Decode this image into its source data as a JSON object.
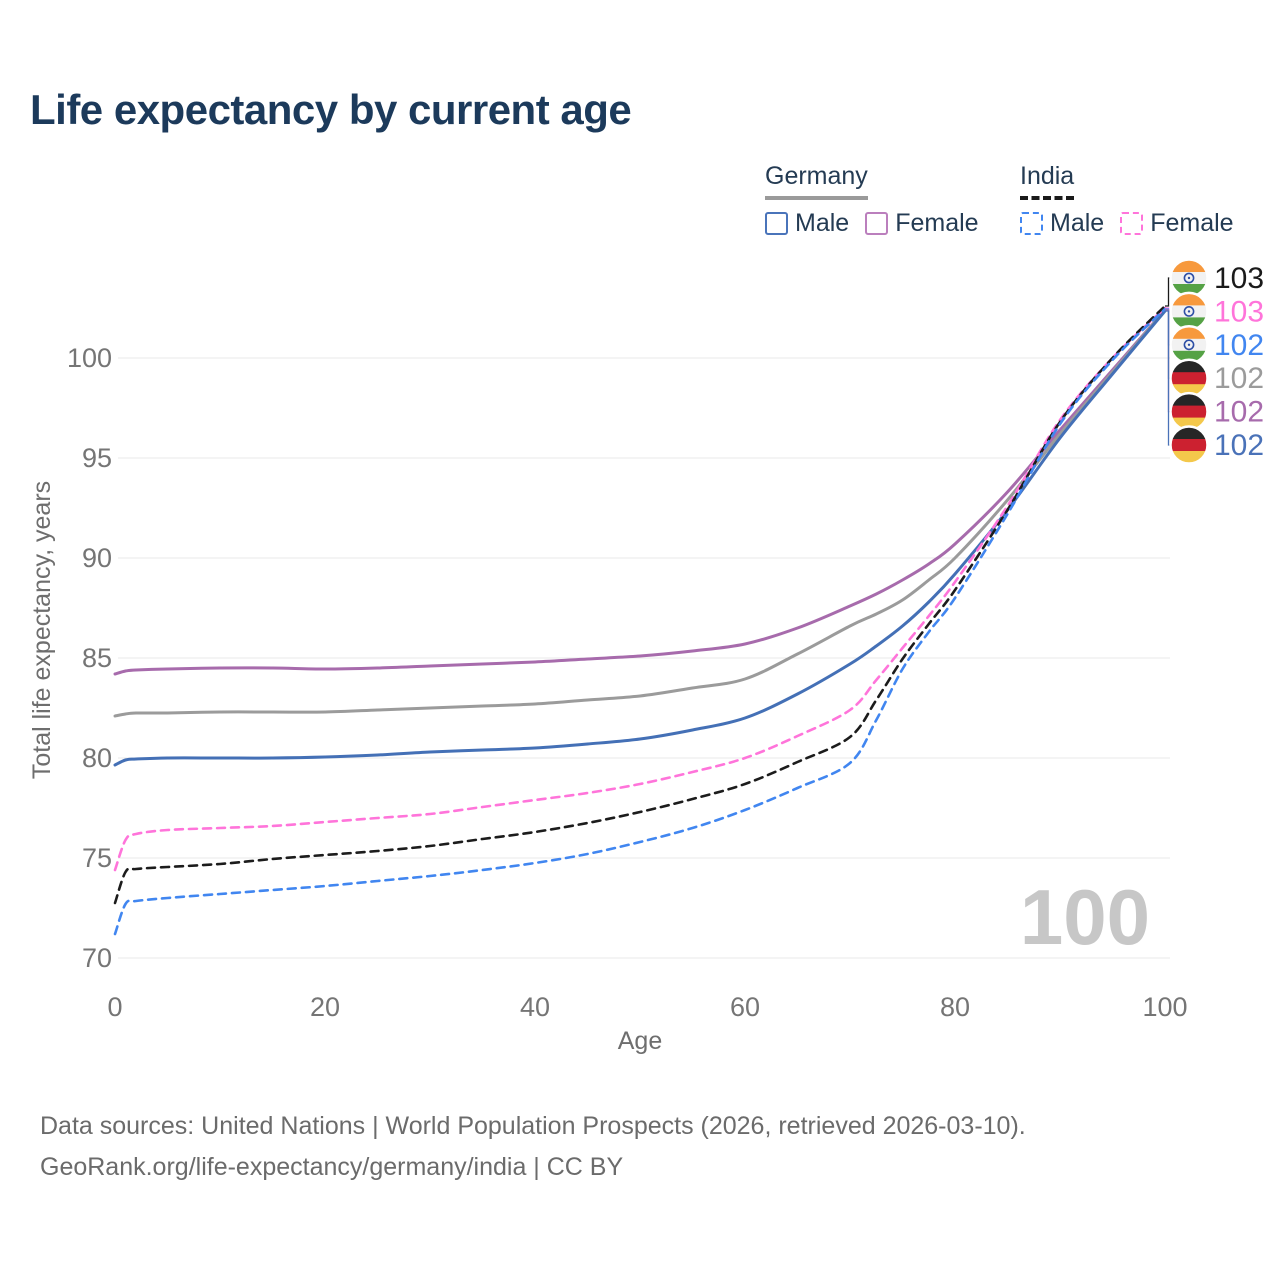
{
  "title": {
    "text": "Life expectancy by current age",
    "color": "#1c3a5b"
  },
  "colors": {
    "grid": "#e8e8e8",
    "tick": "#757575",
    "axis_title": "#6e6e6e",
    "watermark": "#c7c7c7",
    "footer": "#6b6b6b",
    "legend_text": "#243b53"
  },
  "legend": {
    "position": "top-right",
    "groups": [
      {
        "id": "germany",
        "label": "Germany",
        "underline_style": "solid",
        "underline_color": "#9a9a9a",
        "items": [
          {
            "id": "germany-male",
            "label": "Male",
            "box_color": "#4a74ba",
            "box_style": "solid"
          },
          {
            "id": "germany-female",
            "label": "Female",
            "box_color": "#bb7fbd",
            "box_style": "solid"
          }
        ]
      },
      {
        "id": "india",
        "label": "India",
        "underline_style": "dashed",
        "underline_color": "#1a1a1a",
        "items": [
          {
            "id": "india-male",
            "label": "Male",
            "box_color": "#4186f0",
            "box_style": "dashed"
          },
          {
            "id": "india-female",
            "label": "Female",
            "box_color": "#ff74da",
            "box_style": "dashed"
          }
        ]
      }
    ]
  },
  "chart_data": {
    "type": "line",
    "title": "Life expectancy by current age",
    "xlabel": "Age",
    "ylabel": "Total life expectancy, years",
    "xlim": [
      0,
      100
    ],
    "ylim": [
      69,
      104
    ],
    "x_ticks": [
      0,
      20,
      40,
      60,
      80,
      100
    ],
    "y_gridlines": [
      70,
      75,
      80,
      85,
      90,
      95,
      100
    ],
    "grid": true,
    "legend_position": "top-right",
    "watermark": "100",
    "x": [
      0,
      1,
      2,
      5,
      10,
      15,
      20,
      25,
      30,
      35,
      40,
      45,
      50,
      55,
      60,
      65,
      70,
      72.5,
      75,
      77.5,
      80,
      85,
      90,
      95,
      100
    ],
    "series": [
      {
        "id": "germany-female",
        "name": "Germany Female",
        "country": "Germany",
        "sex": "Female",
        "color": "#a76bac",
        "dash": "solid",
        "values": [
          84.2,
          84.35,
          84.4,
          84.45,
          84.5,
          84.5,
          84.45,
          84.5,
          84.6,
          84.7,
          84.8,
          84.95,
          85.1,
          85.35,
          85.7,
          86.5,
          87.6,
          88.2,
          88.9,
          89.7,
          90.7,
          93.3,
          96.4,
          99.4,
          102.4
        ]
      },
      {
        "id": "germany-both",
        "name": "Germany Both sexes",
        "country": "Germany",
        "sex": "Both",
        "color": "#9b9b9b",
        "dash": "solid",
        "values": [
          82.1,
          82.2,
          82.25,
          82.25,
          82.3,
          82.3,
          82.3,
          82.4,
          82.5,
          82.6,
          82.7,
          82.9,
          83.1,
          83.5,
          83.95,
          85.2,
          86.6,
          87.2,
          87.9,
          88.9,
          90.0,
          92.9,
          96.2,
          99.3,
          102.4
        ]
      },
      {
        "id": "germany-male",
        "name": "Germany Male",
        "country": "Germany",
        "sex": "Male",
        "color": "#4470b6",
        "dash": "solid",
        "values": [
          79.65,
          79.9,
          79.95,
          80.0,
          80.0,
          80.0,
          80.05,
          80.15,
          80.3,
          80.4,
          80.5,
          80.7,
          80.95,
          81.4,
          82.0,
          83.2,
          84.7,
          85.6,
          86.6,
          87.8,
          89.2,
          92.4,
          96.0,
          99.2,
          102.35
        ]
      },
      {
        "id": "india-female",
        "name": "India Female",
        "country": "India",
        "sex": "Female",
        "color": "#ff74da",
        "dash": "dashed",
        "values": [
          74.4,
          75.9,
          76.2,
          76.4,
          76.5,
          76.6,
          76.8,
          77.0,
          77.2,
          77.55,
          77.9,
          78.25,
          78.7,
          79.3,
          80.0,
          81.1,
          82.4,
          83.9,
          85.5,
          87.1,
          88.8,
          92.6,
          96.9,
          100.0,
          102.5
        ]
      },
      {
        "id": "india-both",
        "name": "India Both sexes",
        "country": "India",
        "sex": "Both",
        "color": "#1c1c1c",
        "dash": "dashed",
        "values": [
          72.75,
          74.3,
          74.45,
          74.55,
          74.7,
          74.95,
          75.15,
          75.35,
          75.6,
          75.95,
          76.3,
          76.75,
          77.3,
          77.95,
          78.7,
          79.8,
          81.05,
          82.9,
          84.95,
          86.7,
          88.4,
          92.4,
          96.8,
          100.0,
          102.6
        ]
      },
      {
        "id": "india-male",
        "name": "India Male",
        "country": "India",
        "sex": "Male",
        "color": "#4186f0",
        "dash": "dashed",
        "values": [
          71.2,
          72.7,
          72.85,
          73.0,
          73.2,
          73.4,
          73.6,
          73.85,
          74.1,
          74.4,
          74.75,
          75.2,
          75.8,
          76.5,
          77.4,
          78.5,
          79.75,
          81.9,
          84.45,
          86.3,
          88.0,
          92.2,
          96.7,
          99.9,
          102.45
        ]
      }
    ],
    "end_labels": [
      {
        "series": "india-both",
        "text": "103",
        "color": "#1a1a1a",
        "flag": "india"
      },
      {
        "series": "india-female",
        "text": "103",
        "color": "#ff74da",
        "flag": "india"
      },
      {
        "series": "india-male",
        "text": "102",
        "color": "#4186f0",
        "flag": "india"
      },
      {
        "series": "germany-both",
        "text": "102",
        "color": "#9b9b9b",
        "flag": "germany"
      },
      {
        "series": "germany-female",
        "text": "102",
        "color": "#a76bac",
        "flag": "germany"
      },
      {
        "series": "germany-male",
        "text": "102",
        "color": "#4a72b8",
        "flag": "germany"
      }
    ],
    "flags": {
      "india": {
        "bands": [
          "#f7993d",
          "#f2f2f2",
          "#55a245"
        ],
        "emblem": "#2e4fa5"
      },
      "germany": {
        "bands": [
          "#262626",
          "#cc2130",
          "#f4c84b"
        ],
        "emblem": null
      }
    }
  },
  "footer": {
    "line1": "Data sources: United Nations | World Population Prospects (2026, retrieved 2026-03-10).",
    "line2": "GeoRank.org/life-expectancy/germany/india | CC BY"
  }
}
